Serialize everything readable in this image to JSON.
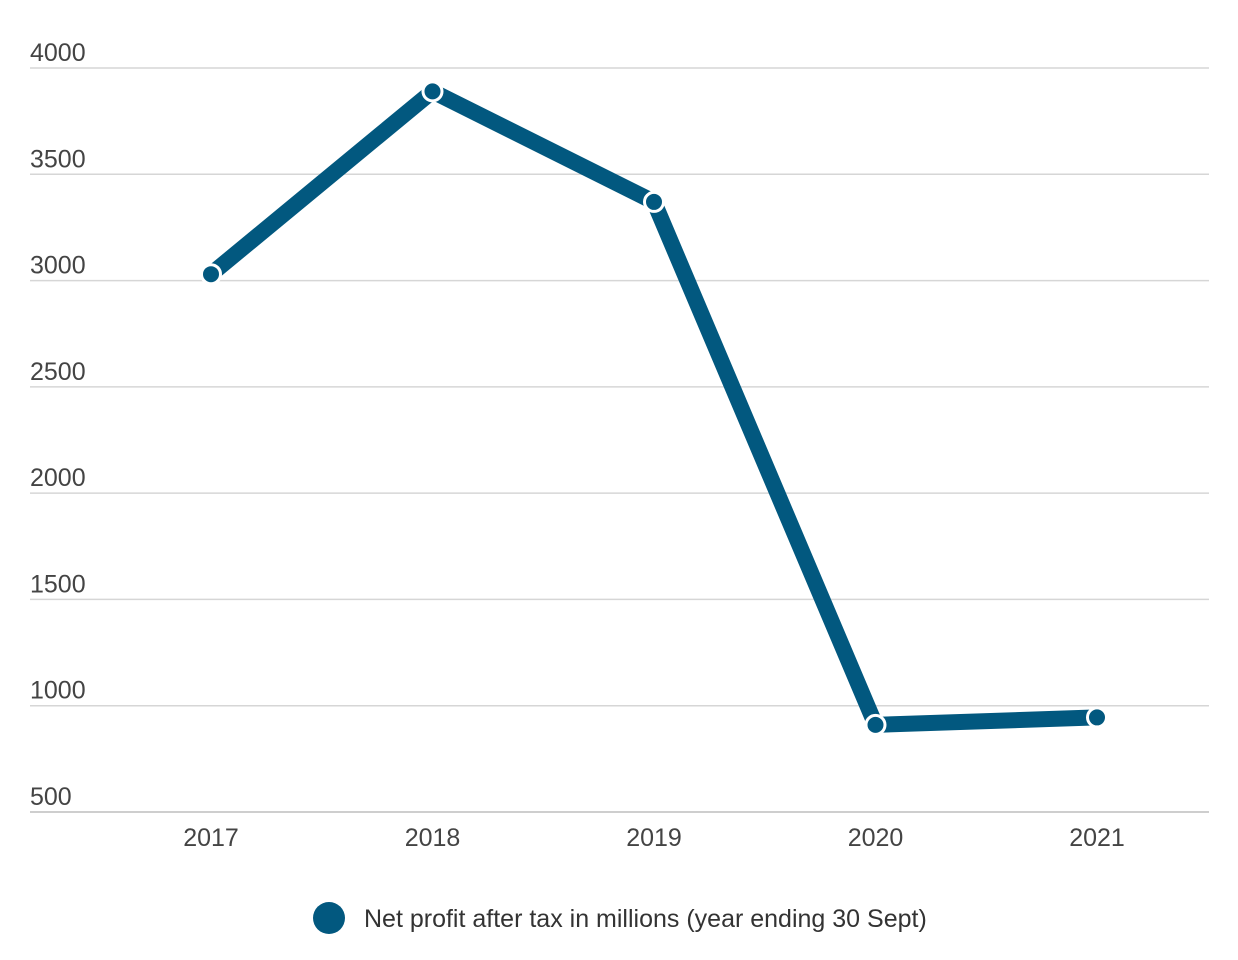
{
  "chart_data": {
    "type": "line",
    "categories": [
      "2017",
      "2018",
      "2019",
      "2020",
      "2021"
    ],
    "series": [
      {
        "name": "Net profit after tax in millions (year ending 30 Sept)",
        "values": [
          3030,
          3890,
          3370,
          910,
          945
        ],
        "color": "#02587f"
      }
    ],
    "ylim": [
      500,
      4000
    ],
    "yticks": [
      500,
      1000,
      1500,
      2000,
      2500,
      3000,
      3500,
      4000
    ],
    "grid": true,
    "legend_position": "bottom-center"
  }
}
